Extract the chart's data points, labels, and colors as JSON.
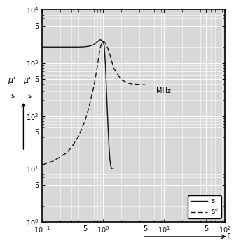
{
  "title": "",
  "xlabel": "f",
  "xmin": 0.1,
  "xmax": 100,
  "ymin": 1,
  "ymax": 10000,
  "xlabel_unit": "MHz",
  "bg_color": "#d8d8d8",
  "grid_major_color": "#ffffff",
  "grid_minor_color": "#ffffff",
  "line_color": "#111111",
  "solid_curve": {
    "x": [
      0.1,
      0.2,
      0.3,
      0.4,
      0.5,
      0.6,
      0.65,
      0.7,
      0.75,
      0.8,
      0.85,
      0.9,
      0.95,
      1.0,
      1.05,
      1.1,
      1.15,
      1.2,
      1.25,
      1.3,
      1.35,
      1.4,
      1.5
    ],
    "y": [
      2000,
      2000,
      2000,
      2000,
      2020,
      2080,
      2150,
      2200,
      2350,
      2500,
      2650,
      2750,
      2700,
      2580,
      2100,
      900,
      250,
      80,
      30,
      15,
      11,
      10,
      10
    ]
  },
  "dashed_curve": {
    "x": [
      0.1,
      0.15,
      0.2,
      0.25,
      0.3,
      0.35,
      0.4,
      0.45,
      0.5,
      0.55,
      0.6,
      0.65,
      0.7,
      0.75,
      0.8,
      0.85,
      0.9,
      0.95,
      1.0,
      1.05,
      1.1,
      1.2,
      1.3,
      1.5,
      2.0,
      2.5,
      3.0,
      4.0,
      5.0
    ],
    "y": [
      12,
      14,
      17,
      20,
      25,
      33,
      42,
      58,
      78,
      110,
      160,
      240,
      340,
      520,
      800,
      1300,
      1900,
      2350,
      2550,
      2500,
      2350,
      1900,
      1450,
      800,
      480,
      420,
      400,
      390,
      385
    ]
  },
  "xticks": [
    0.1,
    0.5,
    1,
    5,
    10,
    50,
    100
  ],
  "xticklabels": [
    "$10^{-1}$",
    "5",
    "$10^{0}$",
    "5",
    "$10^{1}$",
    "5",
    "$10^{2}$"
  ],
  "yticks": [
    1,
    5,
    10,
    50,
    100,
    500,
    1000,
    5000,
    10000
  ],
  "yticklabels": [
    "$10^{0}$",
    "5",
    "$10^{1}$",
    "5",
    "$10^{2}$",
    "5",
    "$10^{3}$",
    "5",
    "$10^{4}$"
  ]
}
